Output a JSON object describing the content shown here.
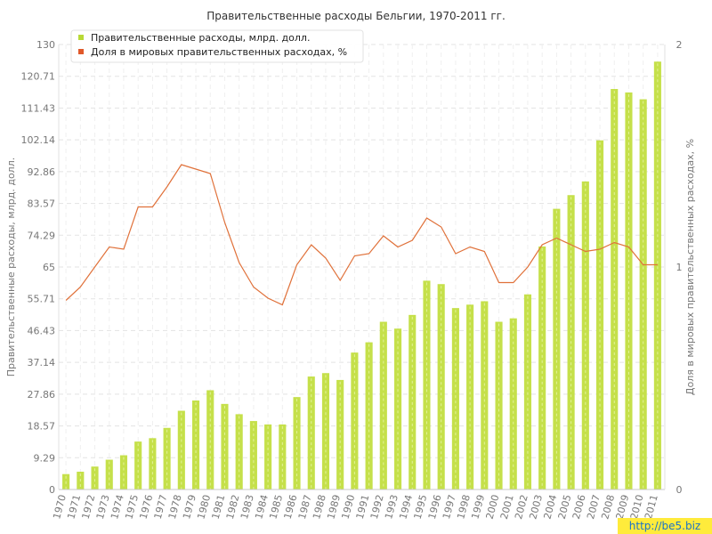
{
  "colors": {
    "bar": "#c5e04a",
    "bar_stripe": "#e4f29a",
    "line": "#e0713a",
    "legend_bar": "#b8d936",
    "legend_line": "#e0582a"
  },
  "watermark": "http://be5.biz",
  "chart_data": {
    "type": "bar",
    "title": "Правительственные расходы Бельгии, 1970-2011 гг.",
    "xlabel": "",
    "ylabel": "Правительственные расходы, млрд. долл.",
    "y2label": "Доля в мировых правительственных расходах, %",
    "ylim": [
      0,
      130
    ],
    "y2lim": [
      0,
      2
    ],
    "y_ticks": [
      "0",
      "9.29",
      "18.57",
      "27.86",
      "37.14",
      "46.43",
      "55.71",
      "65",
      "74.29",
      "83.57",
      "92.86",
      "102.14",
      "111.43",
      "120.71",
      "130"
    ],
    "y2_ticks": [
      "0",
      "1",
      "2"
    ],
    "grid": true,
    "legend_position": "top-left",
    "categories": [
      "1970",
      "1971",
      "1972",
      "1973",
      "1974",
      "1975",
      "1976",
      "1977",
      "1978",
      "1979",
      "1980",
      "1981",
      "1982",
      "1983",
      "1984",
      "1985",
      "1986",
      "1987",
      "1988",
      "1989",
      "1990",
      "1991",
      "1992",
      "1993",
      "1994",
      "1995",
      "1996",
      "1997",
      "1998",
      "1999",
      "2000",
      "2001",
      "2002",
      "2003",
      "2004",
      "2005",
      "2006",
      "2007",
      "2008",
      "2009",
      "2010",
      "2011"
    ],
    "series": [
      {
        "name": "Правительственные расходы, млрд. долл.",
        "type": "bar",
        "axis": "left",
        "values": [
          4.5,
          5.2,
          6.7,
          8.7,
          10.0,
          14.0,
          15.0,
          18.0,
          23.0,
          26.0,
          29.0,
          25.0,
          22.0,
          20.0,
          19.0,
          19.0,
          27.0,
          33.0,
          34.0,
          32.0,
          40.0,
          43.0,
          49.0,
          47.0,
          51.0,
          61.0,
          60.0,
          53.0,
          54.0,
          55.0,
          49.0,
          50.0,
          57.0,
          71.0,
          82.0,
          86.0,
          90.0,
          102.0,
          117.0,
          116.0,
          114.0,
          125.0
        ]
      },
      {
        "name": "Доля в мировых правительственных расходах, %",
        "type": "line",
        "axis": "right",
        "values": [
          0.85,
          0.91,
          1.0,
          1.09,
          1.08,
          1.27,
          1.27,
          1.36,
          1.46,
          1.44,
          1.42,
          1.2,
          1.02,
          0.91,
          0.86,
          0.83,
          1.01,
          1.1,
          1.04,
          0.94,
          1.05,
          1.06,
          1.14,
          1.09,
          1.12,
          1.22,
          1.18,
          1.06,
          1.09,
          1.07,
          0.93,
          0.93,
          1.0,
          1.1,
          1.13,
          1.1,
          1.07,
          1.08,
          1.11,
          1.09,
          1.01,
          1.01
        ]
      }
    ]
  }
}
